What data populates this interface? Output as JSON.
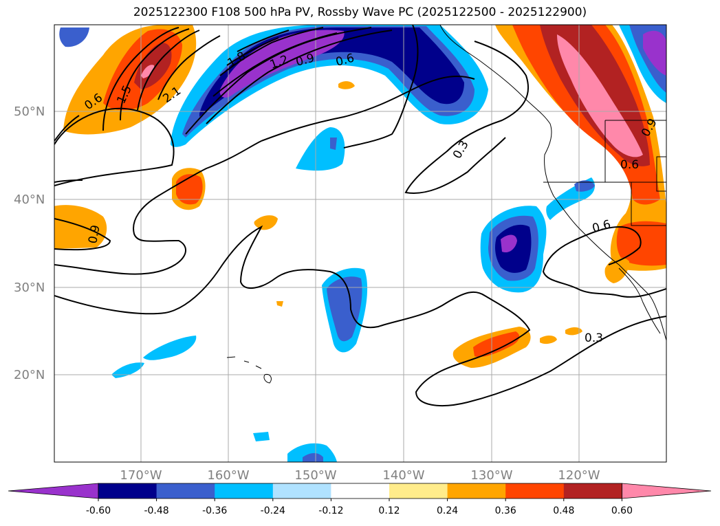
{
  "title": "2025122300 F108 500 hPa PV, Rossby Wave PC (2025122500 - 2025122900)",
  "map": {
    "lon_labels": [
      "170°W",
      "160°W",
      "150°W",
      "140°W",
      "130°W",
      "120°W"
    ],
    "lat_labels": [
      "50°N",
      "40°N",
      "30°N",
      "20°N"
    ],
    "contour_labels": [
      "0.6",
      "1.5",
      "2.1",
      "1.8",
      "1.2",
      "0.9",
      "0.6",
      "0.3",
      "0.6",
      "0.9",
      "0.9",
      "0.6",
      "0.3"
    ]
  },
  "colorbar": {
    "ticks": [
      "-0.60",
      "-0.48",
      "-0.36",
      "-0.24",
      "-0.12",
      "0.12",
      "0.24",
      "0.36",
      "0.48",
      "0.60"
    ],
    "colors": [
      "#9932cc",
      "#00008b",
      "#3a5fcd",
      "#00bfff",
      "#b0e2ff",
      "#ffffff",
      "#ffec8b",
      "#ffa500",
      "#ff4500",
      "#b22222",
      "#ff88aa"
    ]
  }
}
